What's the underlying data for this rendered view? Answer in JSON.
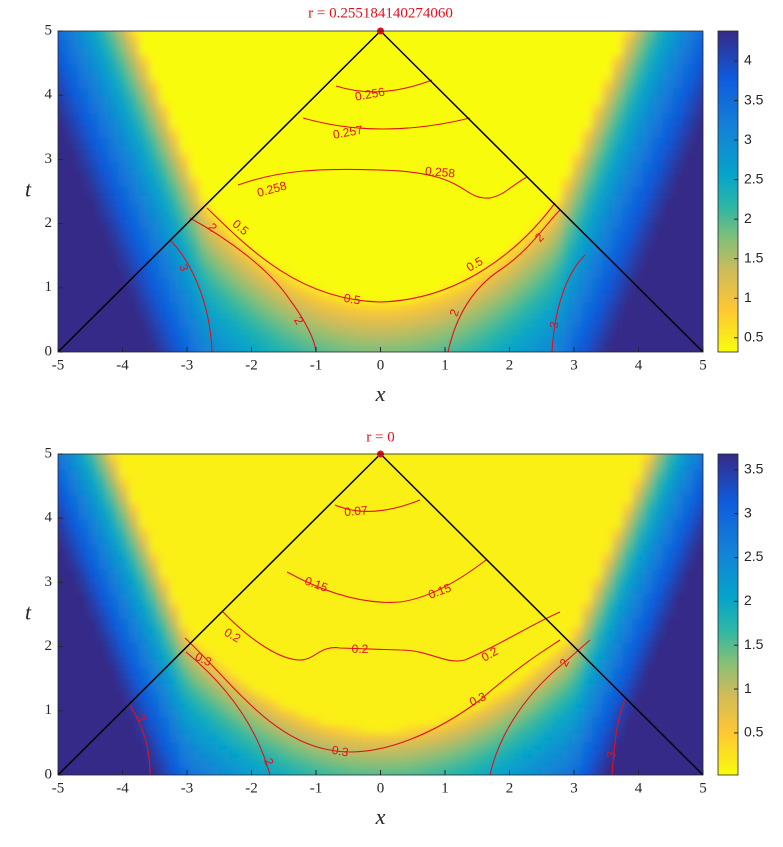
{
  "chart_data": [
    {
      "type": "heatmap",
      "title": "r = 0.255184140274060",
      "title_color": "#e3101b",
      "x_label": "x",
      "y_label": "t",
      "xlim": [
        -5,
        5
      ],
      "ylim": [
        0,
        5
      ],
      "xticks": [
        -5,
        -4,
        -3,
        -2,
        -1,
        0,
        1,
        2,
        3,
        4,
        5
      ],
      "yticks": [
        0,
        1,
        2,
        3,
        4,
        5
      ],
      "clim": [
        0.32,
        4.38
      ],
      "cticks": [
        0.5,
        1,
        1.5,
        2,
        2.5,
        3,
        3.5,
        4
      ],
      "contour_color": "#e3101b",
      "contour_labels": [
        0.256,
        0.257,
        0.258,
        0.258,
        0.5,
        0.5,
        0.5,
        2,
        2,
        2,
        2,
        3,
        3
      ],
      "lines": {
        "color": "#000000",
        "x": [
          -5,
          0,
          5
        ],
        "y": [
          0,
          5,
          0
        ]
      },
      "marker": {
        "color": "#e3101b",
        "x": 0,
        "y": 5
      }
    },
    {
      "type": "heatmap",
      "title": "r = 0",
      "title_color": "#e3101b",
      "x_label": "x",
      "y_label": "t",
      "xlim": [
        -5,
        5
      ],
      "ylim": [
        0,
        5
      ],
      "xticks": [
        -5,
        -4,
        -3,
        -2,
        -1,
        0,
        1,
        2,
        3,
        4,
        5
      ],
      "yticks": [
        0,
        1,
        2,
        3,
        4,
        5
      ],
      "clim": [
        0.02,
        3.68
      ],
      "cticks": [
        0.5,
        1,
        1.5,
        2,
        2.5,
        3,
        3.5
      ],
      "contour_color": "#e3101b",
      "contour_labels": [
        0.07,
        0.15,
        0.15,
        0.2,
        0.2,
        0.2,
        0.3,
        0.3,
        0.3,
        3,
        2,
        2,
        3
      ],
      "lines": {
        "color": "#000000",
        "x": [
          -5,
          0,
          5
        ],
        "y": [
          0,
          5,
          0
        ]
      },
      "marker": {
        "color": "#e3101b",
        "x": 0,
        "y": 5
      }
    }
  ]
}
